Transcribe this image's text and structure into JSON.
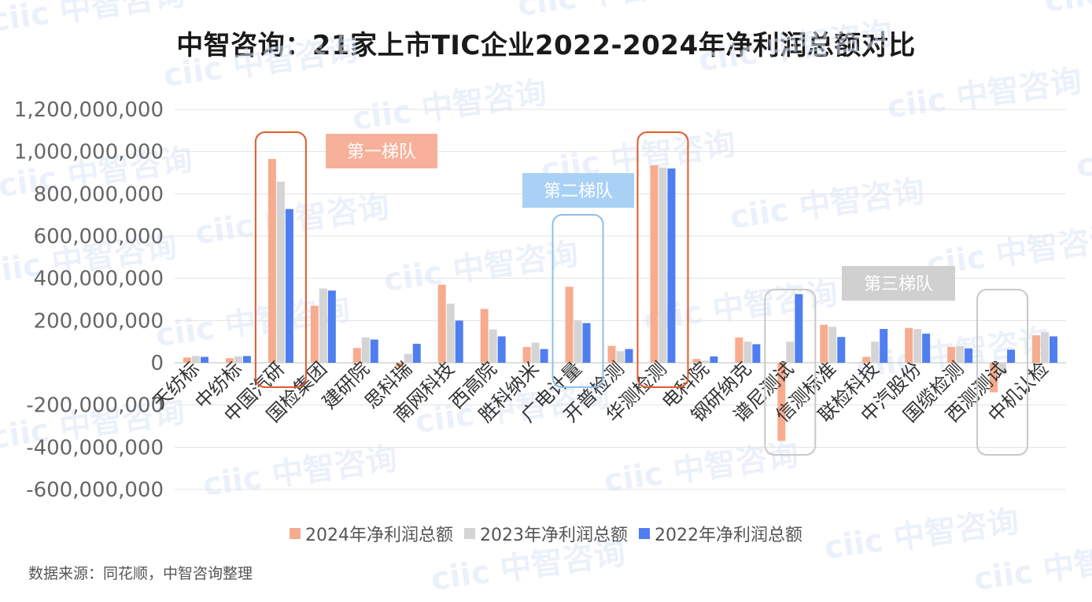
{
  "title": "中智咨询：21家上市TIC企业2022-2024年净利润总额对比",
  "source": "数据来源：同花顺，中智咨询整理",
  "watermark": "ciic 中智咨询",
  "colors": {
    "s2024": "#f7ac8f",
    "s2023": "#d4d4d4",
    "s2022": "#4f7ef0",
    "tier1": "#e05a2b",
    "tier2": "#8fbfe8",
    "tier3": "#c8c8c8",
    "tier1_label_bg": "#f7b09a",
    "tier2_label_bg": "#a9d1f5",
    "tier3_label_bg": "#d0d0d0"
  },
  "tiers": {
    "tier1_label": "第一梯队",
    "tier2_label": "第二梯队",
    "tier3_label": "第三梯队"
  },
  "chart_data": {
    "type": "bar",
    "categories": [
      "天纺标",
      "中纺标",
      "中国汽研",
      "国检集团",
      "建研院",
      "思科瑞",
      "南网科技",
      "西高院",
      "胜科纳米",
      "广电计量",
      "开普检测",
      "华测检测",
      "电科院",
      "钢研纳克",
      "谱尼测试",
      "信测标准",
      "联检科技",
      "中汽股份",
      "国缆检测",
      "西测测试",
      "中机认检"
    ],
    "series": [
      {
        "name": "2024年净利润总额",
        "values": [
          25000000,
          22000000,
          965000000,
          270000000,
          70000000,
          -20000000,
          370000000,
          255000000,
          75000000,
          360000000,
          80000000,
          935000000,
          18000000,
          120000000,
          -370000000,
          180000000,
          28000000,
          165000000,
          75000000,
          -140000000,
          130000000
        ]
      },
      {
        "name": "2023年净利润总额",
        "values": [
          32000000,
          30000000,
          858000000,
          352000000,
          120000000,
          42000000,
          280000000,
          158000000,
          95000000,
          200000000,
          55000000,
          925000000,
          10000000,
          100000000,
          100000000,
          170000000,
          100000000,
          160000000,
          78000000,
          -55000000,
          145000000
        ]
      },
      {
        "name": "2022年净利润总额",
        "values": [
          28000000,
          32000000,
          728000000,
          342000000,
          110000000,
          90000000,
          200000000,
          125000000,
          65000000,
          188000000,
          65000000,
          920000000,
          30000000,
          88000000,
          325000000,
          122000000,
          160000000,
          138000000,
          68000000,
          62000000,
          125000000
        ]
      }
    ],
    "yticks": [
      "1,200,000,000",
      "1,000,000,000",
      "800,000,000",
      "600,000,000",
      "400,000,000",
      "200,000,000",
      "0",
      "-200,000,000",
      "-400,000,000",
      "-600,000,000"
    ],
    "ylim": [
      -600000000,
      1200000000
    ],
    "grid": true,
    "legend": "bottom"
  }
}
